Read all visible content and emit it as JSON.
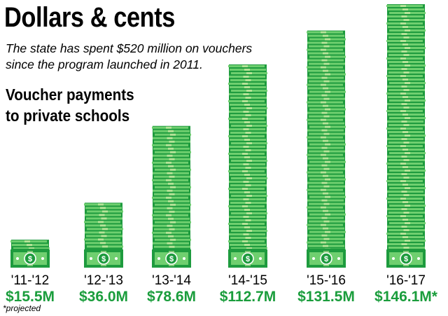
{
  "header": {
    "title": "Dollars & cents",
    "subtitle_lines": [
      "The state has spent $520 million on vouchers",
      "since the program launched in 2011."
    ],
    "chart_label_lines": [
      "Voucher payments",
      "to private schools"
    ]
  },
  "footnote": "*projected",
  "colors": {
    "value_text": "#1a9d3c",
    "bill_dark": "#1e9b3e",
    "bill_light": "#6fcf6f",
    "bill_band": "#cfe9a6",
    "emblem": "#ffffff"
  },
  "icons": {
    "bar_mark": "money-stack-icon"
  },
  "chart_data": {
    "type": "bar",
    "title": "Voucher payments to private schools",
    "categories": [
      "'11-'12",
      "'12-'13",
      "'13-'14",
      "'14-'15",
      "'15-'16",
      "'16-'17"
    ],
    "values": [
      15.5,
      36.0,
      78.6,
      112.7,
      131.5,
      146.1
    ],
    "value_labels": [
      "$15.5M",
      "$36.0M",
      "$78.6M",
      "$112.7M",
      "$131.5M",
      "$146.1M*"
    ],
    "unit": "millions of dollars",
    "projected": [
      false,
      false,
      false,
      false,
      false,
      true
    ],
    "grid": false,
    "legend": "none"
  }
}
